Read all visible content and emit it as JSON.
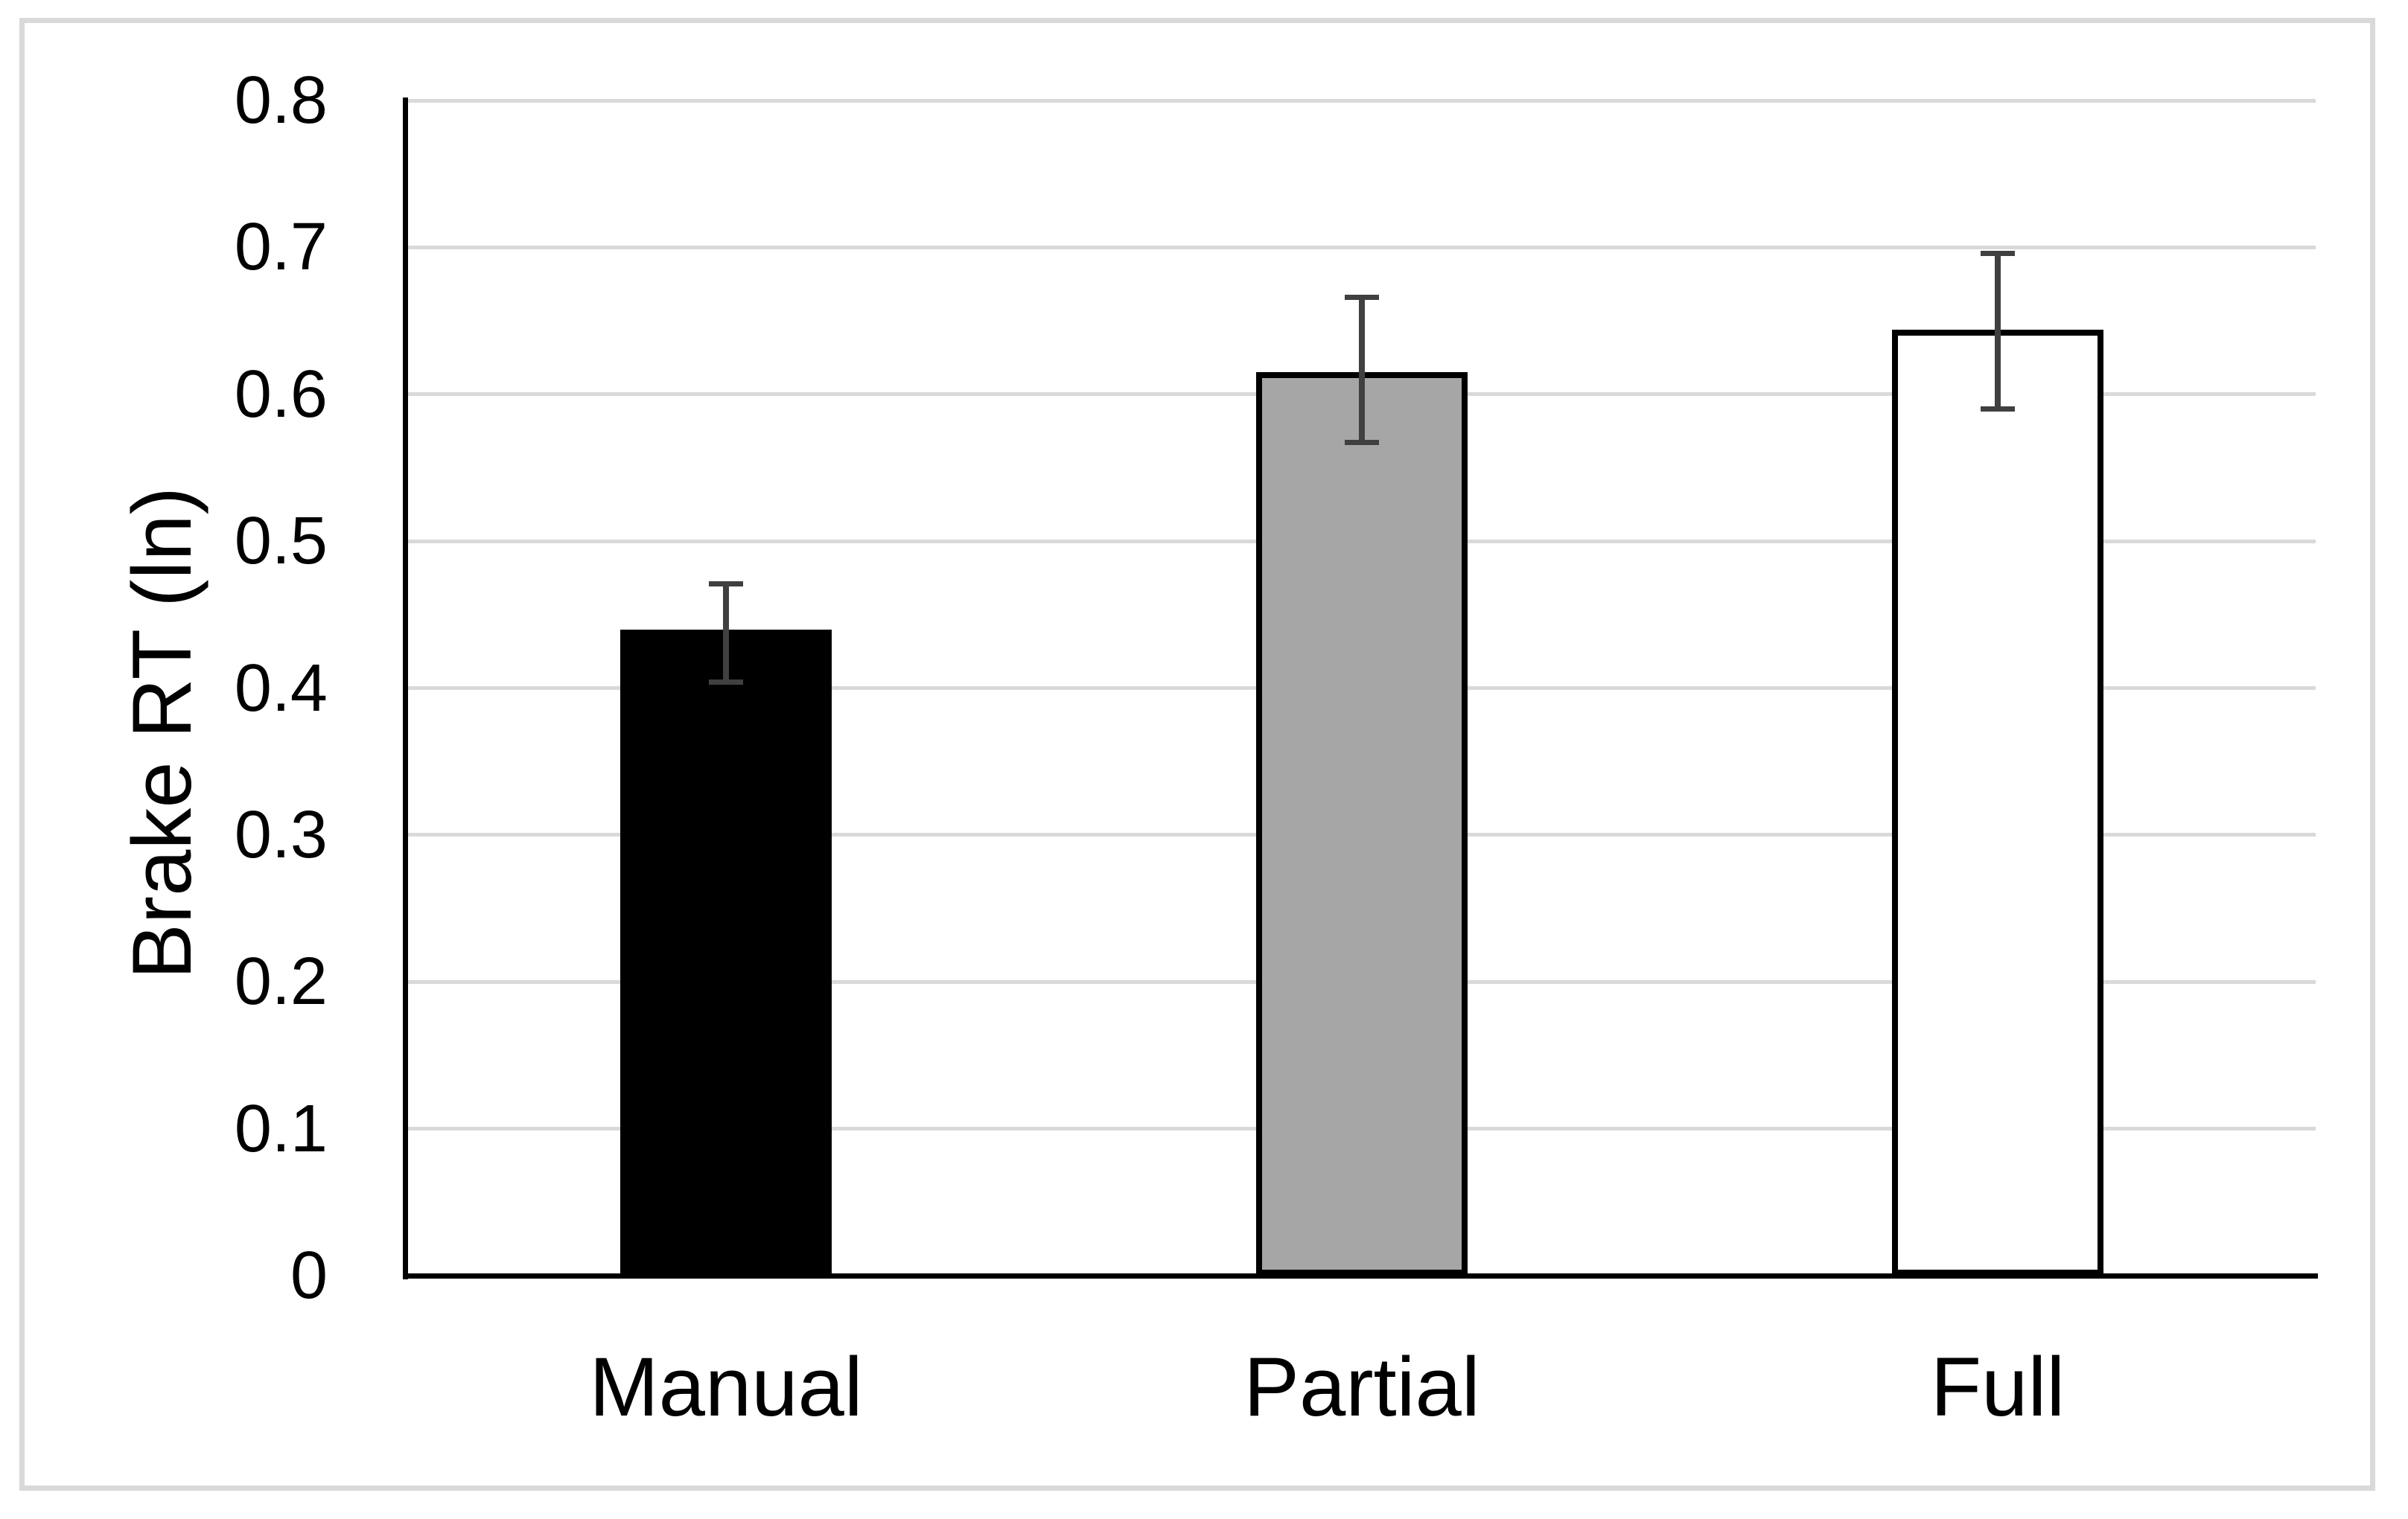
{
  "figure": {
    "background_color": "#ffffff",
    "frame_border_color": "#d9d9d9"
  },
  "chart_data": {
    "type": "bar",
    "title": "",
    "xlabel": "",
    "ylabel": "Brake RT (ln)",
    "categories": [
      "Manual",
      "Partial",
      "Full"
    ],
    "values": [
      0.44,
      0.615,
      0.644
    ],
    "error_upper": [
      0.471,
      0.666,
      0.696
    ],
    "error_lower": [
      0.404,
      0.567,
      0.59
    ],
    "ylim": [
      0,
      0.8
    ],
    "ytick_step": 0.1,
    "ytick_labels": [
      "0",
      "0.1",
      "0.2",
      "0.3",
      "0.4",
      "0.5",
      "0.6",
      "0.7",
      "0.8"
    ],
    "grid": true,
    "legend": false,
    "bar_fill_colors": [
      "#000000",
      "#a6a6a6",
      "#ffffff"
    ],
    "bar_border_color": "#000000",
    "error_bar_color": "#404040",
    "gridline_color": "#d9d9d9",
    "axis_color": "#000000",
    "text_color": "#000000"
  }
}
